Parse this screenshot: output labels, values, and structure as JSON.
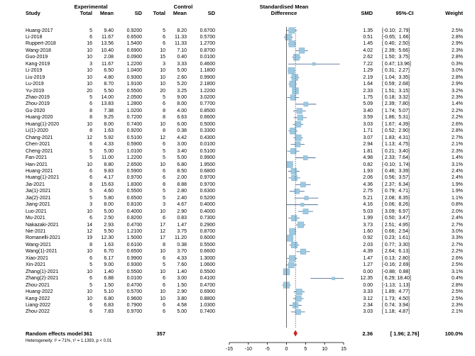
{
  "headers": {
    "experimental": "Experimental",
    "control": "Control",
    "smd_group_line1": "Standardised Mean",
    "smd_group_line2": "Difference",
    "study": "Study",
    "total_e": "Total",
    "mean_e": "Mean",
    "sd_e": "SD",
    "total_c": "Total",
    "mean_c": "Mean",
    "sd_c": "SD",
    "smd": "SMD",
    "ci": "95%-CI",
    "weight": "Weight"
  },
  "pooled": {
    "label": "Random effects model",
    "total_e": "361",
    "total_c": "357",
    "smd": "2.36",
    "ci": "[ 1.96;  2.76]",
    "weight": "100.0%"
  },
  "heterogeneity": "Heterogeneity: I² = 71%, τ² = 1.1393, p < 0.01",
  "colors": {
    "box": "#9cc8e0",
    "diamond": "#cc2222",
    "line": "#3a5a8a"
  },
  "chart_data": {
    "type": "forest",
    "xlim": [
      -15,
      15
    ],
    "xticks": [
      "-15",
      "-10",
      "-5",
      "0",
      "5",
      "10",
      "15"
    ],
    "pooled_estimate": 2.36,
    "pooled_ci": [
      1.96,
      2.76
    ],
    "studies": [
      {
        "study": "Huang-2017",
        "ne": "5",
        "me": "9.40",
        "sde": "0.9200",
        "nc": "5",
        "mc": "8.20",
        "sdc": "0.6700",
        "smd": 1.35,
        "lo": -0.1,
        "hi": 2.79,
        "smd_txt": "1.35",
        "ci_txt": "[-0.10;  2.79]",
        "w": "2.5%"
      },
      {
        "study": "Li-2018",
        "ne": "6",
        "me": "11.67",
        "sde": "0.6500",
        "nc": "6",
        "mc": "11.33",
        "sdc": "0.5700",
        "smd": 0.51,
        "lo": -0.65,
        "hi": 1.66,
        "smd_txt": "0.51",
        "ci_txt": "[-0.65;  1.66]",
        "w": "2.8%"
      },
      {
        "study": "Ruppert-2018",
        "ne": "16",
        "me": "13.56",
        "sde": "1.5400",
        "nc": "6",
        "mc": "11.33",
        "sdc": "1.2700",
        "smd": 1.45,
        "lo": 0.4,
        "hi": 2.5,
        "smd_txt": "1.45",
        "ci_txt": "[ 0.40;  2.50]",
        "w": "2.9%"
      },
      {
        "study": "Wang-2018",
        "ne": "10",
        "me": "10.40",
        "sde": "0.6900",
        "nc": "10",
        "mc": "7.10",
        "sdc": "0.8700",
        "smd": 4.02,
        "lo": 2.39,
        "hi": 5.66,
        "smd_txt": "4.02",
        "ci_txt": "[ 2.39;  5.66]",
        "w": "2.3%"
      },
      {
        "study": "Guo-2019",
        "ne": "10",
        "me": "2.08",
        "sde": "0.0900",
        "nc": "15",
        "mc": "0.40",
        "sdc": "0.0100",
        "smd": 2.62,
        "lo": 1.5,
        "hi": 3.75,
        "smd_txt": "2.62",
        "ci_txt": "[ 1.50;  3.75]",
        "w": "2.8%"
      },
      {
        "study": "Kang-2019",
        "ne": "3",
        "me": "11.67",
        "sde": "1.2200",
        "nc": "3",
        "mc": "3.33",
        "sdc": "0.4600",
        "smd": 7.22,
        "lo": 0.47,
        "hi": 13.96,
        "smd_txt": "7.22",
        "ci_txt": "[ 0.47; 13.96]",
        "w": "0.3%"
      },
      {
        "study": "Li-2019",
        "ne": "10",
        "me": "6.50",
        "sde": "1.0400",
        "nc": "10",
        "mc": "5.00",
        "sdc": "1.1800",
        "smd": 1.29,
        "lo": 0.31,
        "hi": 2.27,
        "smd_txt": "1.29",
        "ci_txt": "[ 0.31;  2.27]",
        "w": "3.0%"
      },
      {
        "study": "Liu-2019",
        "ne": "10",
        "me": "4.80",
        "sde": "0.9300",
        "nc": "10",
        "mc": "2.60",
        "sdc": "0.9900",
        "smd": 2.19,
        "lo": 1.04,
        "hi": 3.35,
        "smd_txt": "2.19",
        "ci_txt": "[ 1.04;  3.35]",
        "w": "2.8%"
      },
      {
        "study": "Lu-2019",
        "ne": "10",
        "me": "8.70",
        "sde": "1.9100",
        "nc": "10",
        "mc": "5.20",
        "sdc": "2.1800",
        "smd": 1.64,
        "lo": 0.59,
        "hi": 2.68,
        "smd_txt": "1.64",
        "ci_txt": "[ 0.59;  2.68]",
        "w": "2.9%"
      },
      {
        "study": "Yu-2019",
        "ne": "20",
        "me": "5.50",
        "sde": "0.5500",
        "nc": "20",
        "mc": "3.25",
        "sdc": "1.2200",
        "smd": 2.33,
        "lo": 1.51,
        "hi": 3.15,
        "smd_txt": "2.33",
        "ci_txt": "[ 1.51;  3.15]",
        "w": "3.2%"
      },
      {
        "study": "Zhao-2019",
        "ne": "5",
        "me": "14.00",
        "sde": "2.0500",
        "nc": "5",
        "mc": "9.00",
        "sdc": "3.0200",
        "smd": 1.75,
        "lo": 0.18,
        "hi": 3.32,
        "smd_txt": "1.75",
        "ci_txt": "[ 0.18;  3.32]",
        "w": "2.3%"
      },
      {
        "study": "Zhou-2019",
        "ne": "6",
        "me": "13.83",
        "sde": "1.2800",
        "nc": "6",
        "mc": "8.00",
        "sdc": "0.7700",
        "smd": 5.09,
        "lo": 2.39,
        "hi": 7.8,
        "smd_txt": "5.09",
        "ci_txt": "[ 2.39;  7.80]",
        "w": "1.4%"
      },
      {
        "study": "Gu-2020",
        "ne": "8",
        "me": "7.38",
        "sde": "1.0200",
        "nc": "8",
        "mc": "4.00",
        "sdc": "0.8500",
        "smd": 3.4,
        "lo": 1.74,
        "hi": 5.07,
        "smd_txt": "3.40",
        "ci_txt": "[ 1.74;  5.07]",
        "w": "2.2%"
      },
      {
        "study": "Huang-2020",
        "ne": "8",
        "me": "9.25",
        "sde": "0.7200",
        "nc": "8",
        "mc": "6.63",
        "sdc": "0.6600",
        "smd": 3.59,
        "lo": 1.86,
        "hi": 5.31,
        "smd_txt": "3.59",
        "ci_txt": "[ 1.86;  5.31]",
        "w": "2.2%"
      },
      {
        "study": "Huang(1)-2020",
        "ne": "10",
        "me": "8.00",
        "sde": "0.7400",
        "nc": "10",
        "mc": "6.00",
        "sdc": "0.5000",
        "smd": 3.03,
        "lo": 1.67,
        "hi": 4.39,
        "smd_txt": "3.03",
        "ci_txt": "[ 1.67;  4.39]",
        "w": "2.6%"
      },
      {
        "study": "Li(1)-2020",
        "ne": "8",
        "me": "1.63",
        "sde": "0.9200",
        "nc": "8",
        "mc": "0.38",
        "sdc": "0.3300",
        "smd": 1.71,
        "lo": 0.52,
        "hi": 2.9,
        "smd_txt": "1.71",
        "ci_txt": "[ 0.52;  2.90]",
        "w": "2.8%"
      },
      {
        "study": "Chang-2021",
        "ne": "12",
        "me": "5.92",
        "sde": "0.5100",
        "nc": "12",
        "mc": "4.42",
        "sdc": "0.4300",
        "smd": 3.07,
        "lo": 1.83,
        "hi": 4.31,
        "smd_txt": "3.07",
        "ci_txt": "[ 1.83;  4.31]",
        "w": "2.7%"
      },
      {
        "study": "Chen-2021",
        "ne": "6",
        "me": "4.33",
        "sde": "0.5900",
        "nc": "6",
        "mc": "3.00",
        "sdc": "0.0100",
        "smd": 2.94,
        "lo": 1.13,
        "hi": 4.75,
        "smd_txt": "2.94",
        "ci_txt": "[ 1.13;  4.75]",
        "w": "2.1%"
      },
      {
        "study": "Cheng-2021",
        "ne": "5",
        "me": "5.00",
        "sde": "1.0100",
        "nc": "5",
        "mc": "3.40",
        "sdc": "0.5100",
        "smd": 1.81,
        "lo": 0.21,
        "hi": 3.4,
        "smd_txt": "1.81",
        "ci_txt": "[ 0.21;  3.40]",
        "w": "2.3%"
      },
      {
        "study": "Fan-2021",
        "ne": "5",
        "me": "11.00",
        "sde": "1.2200",
        "nc": "5",
        "mc": "5.00",
        "sdc": "0.9900",
        "smd": 4.98,
        "lo": 2.33,
        "hi": 7.64,
        "smd_txt": "4.98",
        "ci_txt": "[ 2.33;  7.64]",
        "w": "1.4%"
      },
      {
        "study": "Han-2021",
        "ne": "10",
        "me": "8.80",
        "sde": "2.6500",
        "nc": "10",
        "mc": "6.80",
        "sdc": "1.9500",
        "smd": 0.82,
        "lo": -0.1,
        "hi": 1.74,
        "smd_txt": "0.82",
        "ci_txt": "[-0.10;  1.74]",
        "w": "3.1%"
      },
      {
        "study": "Huang-2021",
        "ne": "6",
        "me": "9.83",
        "sde": "0.5900",
        "nc": "6",
        "mc": "8.50",
        "sdc": "0.6800",
        "smd": 1.93,
        "lo": 0.46,
        "hi": 3.39,
        "smd_txt": "1.93",
        "ci_txt": "[ 0.46;  3.39]",
        "w": "2.4%"
      },
      {
        "study": "Huang(1)-2021",
        "ne": "6",
        "me": "4.17",
        "sde": "0.9700",
        "nc": "6",
        "mc": "2.00",
        "sdc": "0.9700",
        "smd": 2.06,
        "lo": 0.56,
        "hi": 3.57,
        "smd_txt": "2.06",
        "ci_txt": "[ 0.56;  3.57]",
        "w": "2.4%"
      },
      {
        "study": "Jia-2021",
        "ne": "8",
        "me": "15.63",
        "sde": "1.8300",
        "nc": "8",
        "mc": "8.88",
        "sdc": "0.9700",
        "smd": 4.36,
        "lo": 2.37,
        "hi": 6.34,
        "smd_txt": "4.36",
        "ci_txt": "[ 2.37;  6.34]",
        "w": "1.9%"
      },
      {
        "study": "Jia(1)-2021",
        "ne": "5",
        "me": "4.60",
        "sde": "0.5500",
        "nc": "5",
        "mc": "2.80",
        "sdc": "0.6300",
        "smd": 2.75,
        "lo": 0.79,
        "hi": 4.71,
        "smd_txt": "2.75",
        "ci_txt": "[ 0.79;  4.71]",
        "w": "1.9%"
      },
      {
        "study": "Jia(2)-2021",
        "ne": "5",
        "me": "5.80",
        "sde": "0.6500",
        "nc": "5",
        "mc": "2.40",
        "sdc": "0.5200",
        "smd": 5.21,
        "lo": 2.08,
        "hi": 8.35,
        "smd_txt": "5.21",
        "ci_txt": "[ 2.08;  8.35]",
        "w": "1.1%"
      },
      {
        "study": "Jiang-2021",
        "ne": "3",
        "me": "8.00",
        "sde": "0.8100",
        "nc": "3",
        "mc": "4.67",
        "sdc": "0.4000",
        "smd": 4.16,
        "lo": 0.06,
        "hi": 8.26,
        "smd_txt": "4.16",
        "ci_txt": "[ 0.06;  8.26]",
        "w": "0.8%"
      },
      {
        "study": "Luo-2021",
        "ne": "10",
        "me": "5.00",
        "sde": "0.4000",
        "nc": "10",
        "mc": "2.90",
        "sdc": "0.4000",
        "smd": 5.03,
        "lo": 3.09,
        "hi": 6.97,
        "smd_txt": "5.03",
        "ci_txt": "[ 3.09;  6.97]",
        "w": "2.0%"
      },
      {
        "study": "Mu-2021",
        "ne": "6",
        "me": "2.50",
        "sde": "0.8200",
        "nc": "6",
        "mc": "0.83",
        "sdc": "0.7300",
        "smd": 1.99,
        "lo": 0.5,
        "hi": 3.47,
        "smd_txt": "1.99",
        "ci_txt": "[ 0.50;  3.47]",
        "w": "2.4%"
      },
      {
        "study": "Nakazaki-2021",
        "ne": "14",
        "me": "2.93",
        "sde": "0.4700",
        "nc": "17",
        "mc": "1.47",
        "sdc": "0.2900",
        "smd": 3.73,
        "lo": 2.51,
        "hi": 4.95,
        "smd_txt": "3.73",
        "ci_txt": "[ 2.51;  4.95]",
        "w": "2.7%"
      },
      {
        "study": "Nie-2021",
        "ne": "12",
        "me": "5.50",
        "sde": "1.2100",
        "nc": "12",
        "mc": "3.75",
        "sdc": "0.8700",
        "smd": 1.6,
        "lo": 0.66,
        "hi": 2.54,
        "smd_txt": "1.60",
        "ci_txt": "[ 0.66;  2.54]",
        "w": "3.0%"
      },
      {
        "study": "Romanelli-2021",
        "ne": "19",
        "me": "12.30",
        "sde": "1.5000",
        "nc": "17",
        "mc": "11.20",
        "sdc": "0.6000",
        "smd": 0.92,
        "lo": 0.23,
        "hi": 1.61,
        "smd_txt": "0.92",
        "ci_txt": "[ 0.23;  1.61]",
        "w": "3.3%"
      },
      {
        "study": "Wang-2021",
        "ne": "8",
        "me": "1.63",
        "sde": "0.6100",
        "nc": "8",
        "mc": "0.38",
        "sdc": "0.5500",
        "smd": 2.03,
        "lo": 0.77,
        "hi": 3.3,
        "smd_txt": "2.03",
        "ci_txt": "[ 0.77;  3.30]",
        "w": "2.7%"
      },
      {
        "study": "Wang(1)-2021",
        "ne": "10",
        "me": "6.70",
        "sde": "0.6500",
        "nc": "10",
        "mc": "3.70",
        "sdc": "0.6600",
        "smd": 4.39,
        "lo": 2.64,
        "hi": 6.13,
        "smd_txt": "4.39",
        "ci_txt": "[ 2.64;  6.13]",
        "w": "2.2%"
      },
      {
        "study": "Xiao-2021",
        "ne": "6",
        "me": "6.17",
        "sde": "0.9900",
        "nc": "6",
        "mc": "4.33",
        "sdc": "1.3000",
        "smd": 1.47,
        "lo": 0.13,
        "hi": 2.8,
        "smd_txt": "1.47",
        "ci_txt": "[ 0.13;  2.80]",
        "w": "2.6%"
      },
      {
        "study": "Xin-2021",
        "ne": "5",
        "me": "9.00",
        "sde": "0.9300",
        "nc": "5",
        "mc": "7.60",
        "sdc": "1.0600",
        "smd": 1.27,
        "lo": -0.16,
        "hi": 2.69,
        "smd_txt": "1.27",
        "ci_txt": "[-0.16;  2.69]",
        "w": "2.5%"
      },
      {
        "study": "Zhang(1)-2021",
        "ne": "10",
        "me": "1.40",
        "sde": "0.5500",
        "nc": "10",
        "mc": "1.40",
        "sdc": "0.5500",
        "smd": 0.0,
        "lo": -0.88,
        "hi": 0.88,
        "smd_txt": "0.00",
        "ci_txt": "[-0.88;  0.88]",
        "w": "3.1%"
      },
      {
        "study": "Zhang(2)-2021",
        "ne": "6",
        "me": "6.88",
        "sde": "0.0100",
        "nc": "6",
        "mc": "3.00",
        "sdc": "0.4100",
        "smd": 12.35,
        "lo": 6.29,
        "hi": 18.4,
        "smd_txt": "12.35",
        "ci_txt": "[ 6.29; 18.40]",
        "w": "0.4%"
      },
      {
        "study": "Zhou-2021",
        "ne": "5",
        "me": "1.50",
        "sde": "0.4700",
        "nc": "6",
        "mc": "1.50",
        "sdc": "0.4700",
        "smd": 0.0,
        "lo": -1.13,
        "hi": 1.13,
        "smd_txt": "0.00",
        "ci_txt": "[-1.13;  1.13]",
        "w": "2.8%"
      },
      {
        "study": "Huang-2022",
        "ne": "10",
        "me": "5.10",
        "sde": "0.5700",
        "nc": "10",
        "mc": "2.90",
        "sdc": "0.6900",
        "smd": 3.33,
        "lo": 1.89,
        "hi": 4.77,
        "smd_txt": "3.33",
        "ci_txt": "[ 1.89;  4.77]",
        "w": "2.5%"
      },
      {
        "study": "Kang-2022",
        "ne": "10",
        "me": "6.80",
        "sde": "0.9600",
        "nc": "10",
        "mc": "3.80",
        "sdc": "0.8800",
        "smd": 3.12,
        "lo": 1.73,
        "hi": 4.5,
        "smd_txt": "3.12",
        "ci_txt": "[ 1.73;  4.50]",
        "w": "2.5%"
      },
      {
        "study": "Liang-2022",
        "ne": "6",
        "me": "6.83",
        "sde": "0.7900",
        "nc": "6",
        "mc": "4.58",
        "sdc": "1.0300",
        "smd": 2.34,
        "lo": 0.74,
        "hi": 3.94,
        "smd_txt": "2.34",
        "ci_txt": "[ 0.74;  3.94]",
        "w": "2.3%"
      },
      {
        "study": "Zhou-2022",
        "ne": "6",
        "me": "7.83",
        "sde": "0.9700",
        "nc": "6",
        "mc": "5.00",
        "sdc": "0.7400",
        "smd": 3.03,
        "lo": 1.18,
        "hi": 4.87,
        "smd_txt": "3.03",
        "ci_txt": "[ 1.18;  4.87]",
        "w": "2.1%"
      }
    ]
  }
}
